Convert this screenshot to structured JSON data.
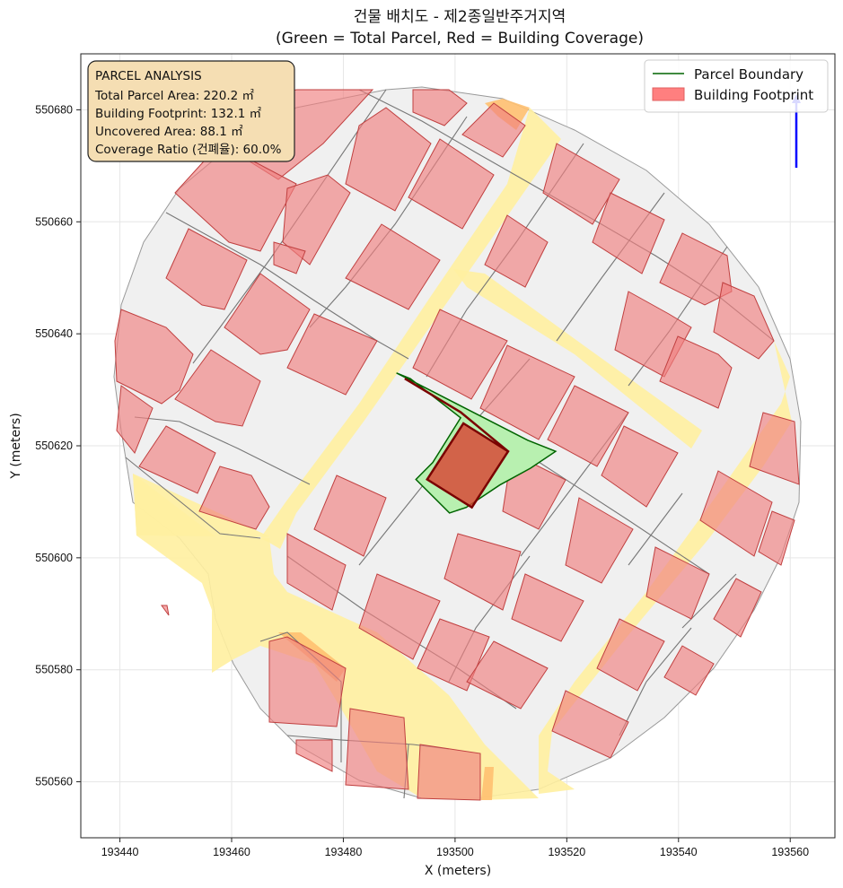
{
  "chart_data": {
    "type": "map",
    "title_line1": "건물 배치도 - 제2종일반주거지역",
    "title_line2": "(Green = Total Parcel, Red = Building Coverage)",
    "xlabel": "X (meters)",
    "ylabel": "Y (meters)",
    "xlim": [
      193433,
      193568
    ],
    "ylim": [
      550550,
      550690
    ],
    "xticks": [
      193440,
      193460,
      193480,
      193500,
      193520,
      193540,
      193560
    ],
    "yticks": [
      550560,
      550580,
      550600,
      550620,
      550640,
      550660,
      550680
    ],
    "grid": true,
    "legend_position": "top-right",
    "legend": [
      {
        "label": "Parcel Boundary",
        "type": "line",
        "color": "#006400"
      },
      {
        "label": "Building Footprint",
        "type": "patch",
        "color": "#ff7f7f"
      }
    ],
    "annotation": {
      "title": "PARCEL ANALYSIS",
      "lines": [
        "Total Parcel Area: 220.2 ㎡",
        "Building Footprint: 132.1 ㎡",
        "Uncovered Area: 88.1 ㎡",
        "Coverage Ratio (건폐율): 60.0%"
      ]
    },
    "colors": {
      "area_fill": "#f0f0f0",
      "road": "#fff0a0",
      "building": "#f08080",
      "building_edge": "#c85050",
      "target_parcel_fill": "#b8f0b0",
      "target_parcel_edge": "#006400",
      "target_building_fill": "#d84030",
      "target_building_edge": "#7a0000",
      "north_arrow": "#0000ff"
    },
    "target_parcel": [
      [
        193489.5,
        550633
      ],
      [
        193513,
        550621
      ],
      [
        193518,
        550619
      ],
      [
        193513.5,
        550616
      ],
      [
        193508,
        550613
      ],
      [
        193502,
        550609
      ],
      [
        193499,
        550608
      ],
      [
        193493,
        550614
      ],
      [
        193496,
        550617
      ],
      [
        193501,
        550625
      ],
      [
        193492,
        550632
      ]
    ],
    "target_building": [
      [
        193501.5,
        550624
      ],
      [
        193509.5,
        550619
      ],
      [
        193503,
        550609
      ],
      [
        193495,
        550614
      ]
    ],
    "target_path": [
      [
        193491,
        550632
      ],
      [
        193501,
        550626
      ],
      [
        193509.5,
        550619
      ]
    ]
  }
}
